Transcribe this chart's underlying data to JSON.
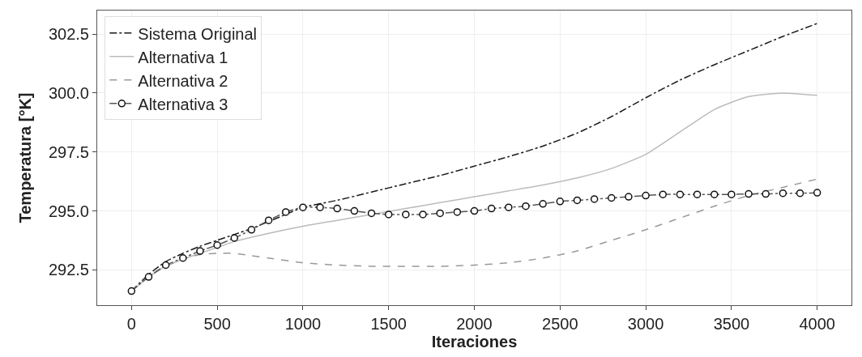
{
  "chart_data": {
    "type": "line",
    "xlabel": "Iteraciones",
    "ylabel": "Temperatura [°K]",
    "xlim": [
      -200,
      4200
    ],
    "xticks": [
      0,
      500,
      1000,
      1500,
      2000,
      2500,
      3000,
      3500,
      4000
    ],
    "ylim": [
      291.0,
      303.5
    ],
    "yticks": [
      {
        "value": 292.5,
        "label": "292.5"
      },
      {
        "value": 295,
        "label": "295.0"
      },
      {
        "value": 297.5,
        "label": "297.5"
      },
      {
        "value": 300,
        "label": "300.0"
      },
      {
        "value": 302.5,
        "label": "302.5"
      }
    ],
    "grid": true,
    "legend": "top left",
    "series": [
      {
        "name": "Sistema Original",
        "color": "#1a1a1a",
        "line_style": "dashdot",
        "marker": "none",
        "x": [
          0,
          100,
          200,
          300,
          400,
          500,
          600,
          700,
          800,
          900,
          1000,
          1200,
          1400,
          1600,
          1800,
          2000,
          2200,
          2400,
          2600,
          2800,
          3000,
          3200,
          3400,
          3600,
          3800,
          4000
        ],
        "values": [
          291.6,
          292.3,
          292.85,
          293.2,
          293.5,
          293.75,
          294.0,
          294.25,
          294.55,
          294.85,
          295.15,
          295.45,
          295.8,
          296.15,
          296.5,
          296.9,
          297.3,
          297.75,
          298.3,
          299.0,
          299.8,
          300.55,
          301.2,
          301.8,
          302.4,
          302.95
        ]
      },
      {
        "name": "Alternativa 1",
        "color": "#bbbbbb",
        "line_style": "solid",
        "marker": "none",
        "x": [
          0,
          100,
          200,
          300,
          400,
          500,
          600,
          800,
          1000,
          1200,
          1400,
          1600,
          1800,
          2000,
          2200,
          2400,
          2600,
          2800,
          3000,
          3200,
          3400,
          3600,
          3800,
          4000
        ],
        "values": [
          291.6,
          292.2,
          292.65,
          292.95,
          293.2,
          293.45,
          293.7,
          294.05,
          294.35,
          294.6,
          294.85,
          295.1,
          295.35,
          295.6,
          295.85,
          296.1,
          296.4,
          296.8,
          297.4,
          298.35,
          299.3,
          299.85,
          300.0,
          299.9
        ]
      },
      {
        "name": "Alternativa 2",
        "color": "#999999",
        "line_style": "dashed",
        "marker": "none",
        "x": [
          0,
          100,
          200,
          300,
          400,
          500,
          600,
          700,
          800,
          1000,
          1200,
          1400,
          1600,
          1800,
          2000,
          2200,
          2400,
          2600,
          2800,
          3000,
          3200,
          3400,
          3600,
          3800,
          4000
        ],
        "values": [
          291.6,
          292.2,
          292.65,
          292.95,
          293.15,
          293.2,
          293.2,
          293.1,
          293.0,
          292.8,
          292.7,
          292.65,
          292.65,
          292.65,
          292.7,
          292.8,
          293.0,
          293.3,
          293.75,
          294.2,
          294.7,
          295.2,
          295.65,
          296.0,
          296.35
        ]
      },
      {
        "name": "Alternativa 3",
        "color": "#555555",
        "line_style": "dashdot",
        "marker": "circle",
        "x": [
          0,
          100,
          200,
          300,
          400,
          500,
          600,
          700,
          800,
          900,
          1000,
          1100,
          1200,
          1300,
          1400,
          1500,
          1600,
          1700,
          1800,
          1900,
          2000,
          2100,
          2200,
          2300,
          2400,
          2500,
          2600,
          2700,
          2800,
          2900,
          3000,
          3100,
          3200,
          3300,
          3400,
          3500,
          3600,
          3700,
          3800,
          3900,
          4000
        ],
        "values": [
          291.6,
          292.2,
          292.7,
          293.0,
          293.3,
          293.55,
          293.85,
          294.2,
          294.6,
          294.95,
          295.15,
          295.15,
          295.1,
          295.0,
          294.9,
          294.85,
          294.85,
          294.85,
          294.9,
          294.95,
          295.0,
          295.1,
          295.15,
          295.2,
          295.3,
          295.4,
          295.45,
          295.5,
          295.55,
          295.6,
          295.65,
          295.7,
          295.7,
          295.7,
          295.7,
          295.7,
          295.72,
          295.72,
          295.75,
          295.75,
          295.77
        ]
      }
    ]
  }
}
